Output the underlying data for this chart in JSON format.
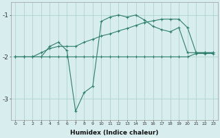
{
  "xlabel": "Humidex (Indice chaleur)",
  "bg_color": "#d8eeee",
  "line_color": "#2e7d6e",
  "grid_color": "#a8cccc",
  "x_ticks": [
    0,
    1,
    2,
    3,
    4,
    5,
    6,
    7,
    8,
    9,
    10,
    11,
    12,
    13,
    14,
    15,
    16,
    17,
    18,
    19,
    20,
    21,
    22,
    23
  ],
  "ylim": [
    -3.5,
    -0.7
  ],
  "yticks": [
    -3,
    -2,
    -1
  ],
  "line1_x": [
    0,
    1,
    2,
    3,
    4,
    5,
    6,
    7,
    8,
    9,
    10,
    11,
    12,
    13,
    14,
    15,
    16,
    17,
    18,
    19,
    20,
    21,
    22,
    23
  ],
  "line1_y": [
    -2.0,
    -2.0,
    -2.0,
    -2.0,
    -2.0,
    -2.0,
    -2.0,
    -2.0,
    -2.0,
    -2.0,
    -2.0,
    -2.0,
    -2.0,
    -2.0,
    -2.0,
    -2.0,
    -2.0,
    -2.0,
    -2.0,
    -2.0,
    -2.0,
    -1.92,
    -1.92,
    -1.92
  ],
  "line2_x": [
    0,
    1,
    2,
    3,
    4,
    5,
    6,
    7,
    8,
    9,
    10,
    11,
    12,
    13,
    14,
    15,
    16,
    17,
    18,
    19,
    20,
    21,
    22,
    23
  ],
  "line2_y": [
    -2.0,
    -2.0,
    -2.0,
    -1.9,
    -1.8,
    -1.75,
    -1.75,
    -1.75,
    -1.65,
    -1.58,
    -1.5,
    -1.45,
    -1.38,
    -1.32,
    -1.25,
    -1.18,
    -1.14,
    -1.1,
    -1.1,
    -1.1,
    -1.3,
    -1.9,
    -1.9,
    -1.9
  ],
  "line3_x": [
    0,
    1,
    2,
    3,
    4,
    5,
    6,
    7,
    8,
    9,
    10,
    11,
    12,
    13,
    14,
    15,
    16,
    17,
    18,
    19,
    20,
    21,
    22,
    23
  ],
  "line3_y": [
    -2.0,
    -2.0,
    -2.0,
    -2.0,
    -1.75,
    -1.65,
    -1.85,
    -3.3,
    -2.85,
    -2.7,
    -1.15,
    -1.05,
    -1.0,
    -1.05,
    -1.0,
    -1.12,
    -1.27,
    -1.35,
    -1.4,
    -1.3,
    -1.9,
    -1.9,
    -1.9,
    -1.9
  ]
}
